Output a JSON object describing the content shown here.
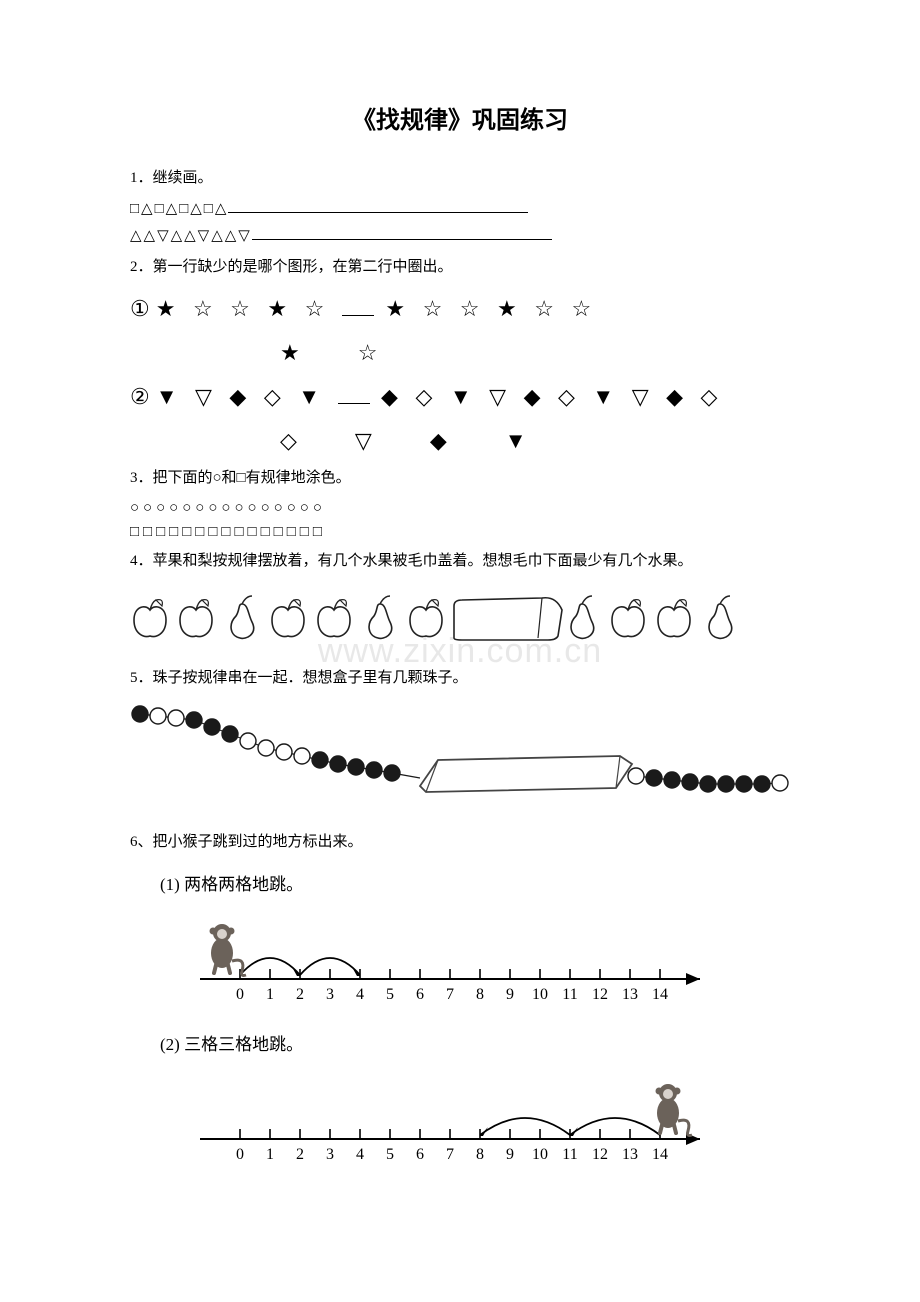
{
  "title": "《找规律》巩固练习",
  "q1": {
    "label": "1．继续画。",
    "line1_shapes": "□△□△□△□△",
    "line2_shapes": "△△▽△△▽△△▽"
  },
  "q2": {
    "label": "2．第一行缺少的是哪个图形，在第二行中圈出。",
    "part1_num": "①",
    "part1_seq_left": "★ ☆ ☆ ★ ☆",
    "part1_seq_right": "★ ☆ ☆ ★ ☆ ☆",
    "part1_choices": "★　☆",
    "part2_num": "②",
    "part2_seq_left": "▼ ▽ ◆ ◇ ▼",
    "part2_seq_right": "◆ ◇ ▼ ▽ ◆ ◇ ▼ ▽ ◆ ◇",
    "part2_choices": "◇　▽　◆　▼"
  },
  "q3": {
    "label": "3．把下面的○和□有规律地涂色。",
    "circles": "○○○○○○○○○○○○○○○",
    "squares": "□□□□□□□□□□□□□□□"
  },
  "q4": {
    "label": "4．苹果和梨按规律摆放着，有几个水果被毛巾盖着。想想毛巾下面最少有几个水果。",
    "sequence": [
      "apple",
      "apple",
      "pear",
      "apple",
      "apple",
      "pear",
      "apple",
      "towel",
      "pear",
      "apple",
      "apple",
      "pear"
    ],
    "colors": {
      "stroke": "#222222",
      "fill": "#ffffff",
      "towel_fill": "#ffffff"
    }
  },
  "watermark": "www.zixin.com.cn",
  "q5": {
    "label": "5．珠子按规律串在一起．想想盒子里有几颗珠子。",
    "beads_left": [
      "b",
      "w",
      "w",
      "b",
      "b",
      "b",
      "w",
      "w",
      "w",
      "w",
      "b",
      "b",
      "b",
      "b",
      "b"
    ],
    "beads_right": [
      "w",
      "b",
      "b",
      "b",
      "b",
      "b",
      "b",
      "b",
      "w"
    ],
    "colors": {
      "black": "#1a1a1a",
      "white": "#ffffff",
      "stroke": "#1a1a1a",
      "box": "#444444"
    }
  },
  "q6": {
    "label": "6、把小猴子跳到过的地方标出来。",
    "sub1": "(1) 两格两格地跳。",
    "sub2": "(2) 三格三格地跳。",
    "ticks": [
      "0",
      "1",
      "2",
      "3",
      "4",
      "5",
      "6",
      "7",
      "8",
      "9",
      "10",
      "11",
      "12",
      "13",
      "14"
    ],
    "line1_arcs": [
      [
        0,
        2
      ],
      [
        2,
        4
      ]
    ],
    "line2_arcs": [
      [
        14,
        11
      ],
      [
        11,
        8
      ]
    ],
    "monkey_color": "#6b625a",
    "axis_color": "#000000"
  }
}
